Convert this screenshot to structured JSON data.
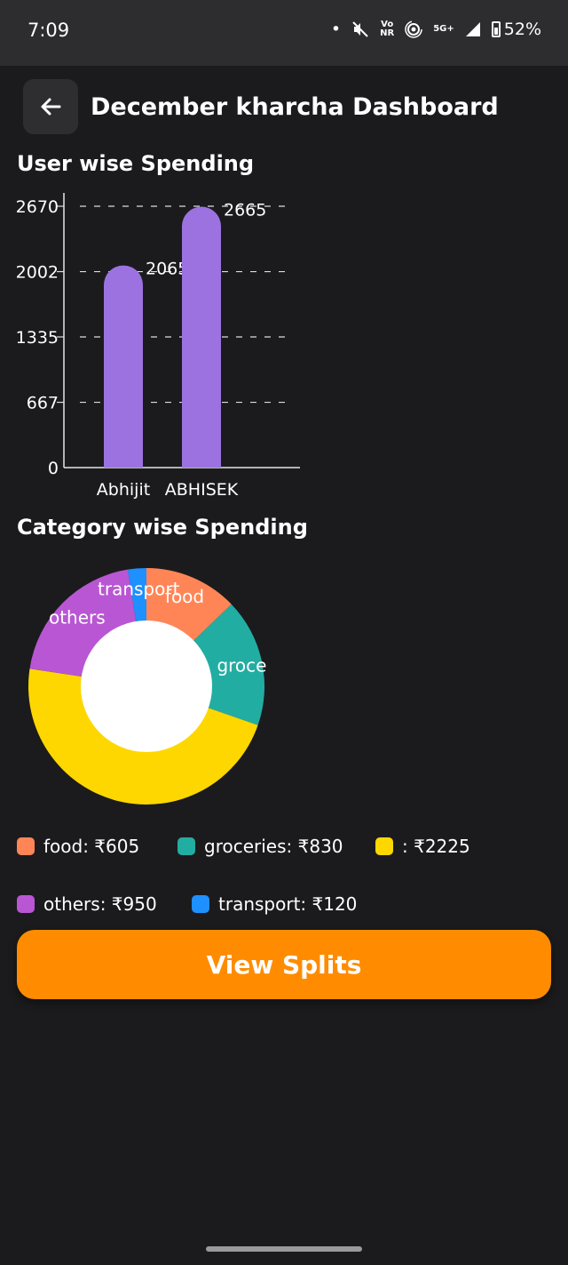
{
  "status_bar": {
    "time": "7:09",
    "net_top": "Vo",
    "net_bottom": "NR",
    "signal": "5G+",
    "battery": "52%"
  },
  "header": {
    "title": "December kharcha Dashboard"
  },
  "user_section": {
    "title": "User wise Spending"
  },
  "category_section": {
    "title": "Category wise Spending"
  },
  "chart_data": [
    {
      "type": "bar",
      "title": "User wise Spending",
      "categories": [
        "Abhijit",
        "ABHISEK"
      ],
      "values": [
        2065,
        2665
      ],
      "data_labels": [
        "2065",
        "2665"
      ],
      "yticks": [
        0,
        667,
        1335,
        2002,
        2670
      ],
      "ylim": [
        0,
        2670
      ],
      "color": "#9b72e0",
      "grid": true
    },
    {
      "type": "pie",
      "title": "Category wise Spending",
      "slices": [
        {
          "label": "food",
          "short": "food",
          "value": 605,
          "color": "#ff8556"
        },
        {
          "label": "groceries",
          "short": "groce",
          "value": 830,
          "color": "#22ada3"
        },
        {
          "label": "",
          "short": "",
          "value": 2225,
          "color": "#ffd700"
        },
        {
          "label": "others",
          "short": "others",
          "value": 950,
          "color": "#b956d4"
        },
        {
          "label": "transport",
          "short": "transport",
          "value": 120,
          "color": "#1e90ff"
        }
      ]
    }
  ],
  "legend": [
    {
      "text": "food: ₹605",
      "color": "#ff8556"
    },
    {
      "text": "groceries: ₹830",
      "color": "#22ada3"
    },
    {
      "text": ": ₹2225",
      "color": "#ffd700"
    },
    {
      "text": "others: ₹950",
      "color": "#b956d4"
    },
    {
      "text": "transport: ₹120",
      "color": "#1e90ff"
    }
  ],
  "actions": {
    "view_splits": "View Splits"
  }
}
